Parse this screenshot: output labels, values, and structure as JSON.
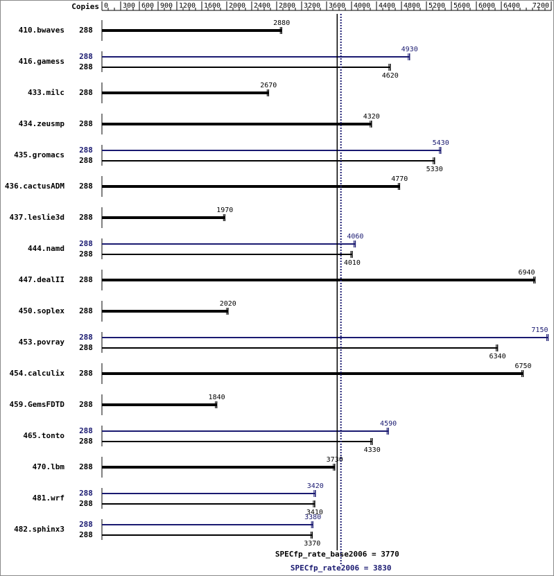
{
  "chart_data": {
    "type": "bar",
    "orientation": "horizontal",
    "copies_label": "Copies",
    "categories": [
      "410.bwaves",
      "416.gamess",
      "433.milc",
      "434.zeusmp",
      "435.gromacs",
      "436.cactusADM",
      "437.leslie3d",
      "444.namd",
      "447.dealII",
      "450.soplex",
      "453.povray",
      "454.calculix",
      "459.GemsFDTD",
      "465.tonto",
      "470.lbm",
      "481.wrf",
      "482.sphinx3"
    ],
    "series": [
      {
        "color": "#000000",
        "copies": [
          288,
          288,
          288,
          288,
          288,
          288,
          288,
          288,
          288,
          288,
          288,
          288,
          288,
          288,
          288,
          288,
          288
        ],
        "values": [
          2880,
          4620,
          2670,
          4320,
          5330,
          4770,
          1970,
          4010,
          6940,
          2020,
          6340,
          6750,
          1840,
          4330,
          3730,
          3410,
          3370
        ]
      },
      {
        "color": "#191970",
        "copies": [
          null,
          288,
          null,
          null,
          288,
          null,
          null,
          288,
          null,
          null,
          288,
          null,
          null,
          288,
          null,
          288,
          288
        ],
        "values": [
          null,
          4930,
          null,
          null,
          5430,
          null,
          null,
          4060,
          null,
          null,
          7150,
          null,
          null,
          4590,
          null,
          3420,
          3380
        ]
      }
    ],
    "xlim": [
      0,
      7200
    ],
    "xticks": [
      0,
      300,
      600,
      900,
      1200,
      1600,
      2000,
      2400,
      2800,
      3200,
      3600,
      4000,
      4400,
      4800,
      5200,
      5600,
      6000,
      6400,
      7200
    ],
    "reference_lines": [
      {
        "label": "SPECfp_rate_base2006 = 3770",
        "value": 3770,
        "color": "#000000",
        "dashed": false
      },
      {
        "label": "SPECfp_rate2006 = 3830",
        "value": 3830,
        "color": "#191970",
        "dashed": true
      }
    ]
  }
}
